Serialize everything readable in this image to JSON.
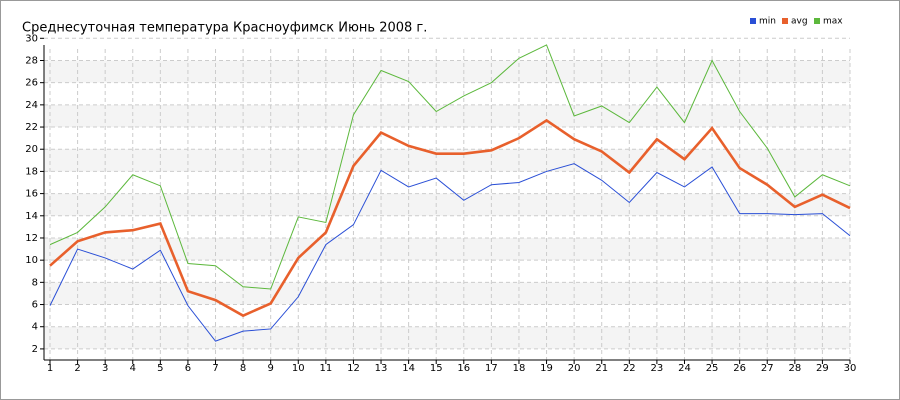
{
  "chart_data": {
    "type": "line",
    "title": "Среднесуточная температура Красноуфимск  Июнь 2008 г.",
    "x": [
      1,
      2,
      3,
      4,
      5,
      6,
      7,
      8,
      9,
      10,
      11,
      12,
      13,
      14,
      15,
      16,
      17,
      18,
      19,
      20,
      21,
      22,
      23,
      24,
      25,
      26,
      27,
      28,
      29,
      30
    ],
    "xlim": [
      1,
      30
    ],
    "xticks": [
      1,
      2,
      3,
      4,
      5,
      6,
      7,
      8,
      9,
      10,
      11,
      12,
      13,
      14,
      15,
      16,
      17,
      18,
      19,
      20,
      21,
      22,
      23,
      24,
      25,
      26,
      27,
      28,
      29,
      30
    ],
    "ylim": [
      1,
      30
    ],
    "yticks": [
      2,
      4,
      6,
      8,
      10,
      12,
      14,
      16,
      18,
      20,
      22,
      24,
      26,
      28,
      30
    ],
    "grid": true,
    "legend": "top-right",
    "series": [
      {
        "name": "min",
        "color": "#2a4fd6",
        "values": [
          5.9,
          11.0,
          10.2,
          9.2,
          10.9,
          5.9,
          2.7,
          3.6,
          3.8,
          6.7,
          11.4,
          13.2,
          18.1,
          16.6,
          17.4,
          15.4,
          16.8,
          17.0,
          18.0,
          18.7,
          17.2,
          15.2,
          17.9,
          16.6,
          18.4,
          14.2,
          14.2,
          14.1,
          14.2,
          12.2
        ]
      },
      {
        "name": "avg",
        "color": "#e8602c",
        "values": [
          9.5,
          11.7,
          12.5,
          12.7,
          13.3,
          7.2,
          6.4,
          5.0,
          6.1,
          10.2,
          12.5,
          18.5,
          21.5,
          20.3,
          19.6,
          19.6,
          19.9,
          21.0,
          22.6,
          20.9,
          19.8,
          17.9,
          20.9,
          19.1,
          21.9,
          18.3,
          16.8,
          14.8,
          15.9,
          14.7
        ]
      },
      {
        "name": "max",
        "color": "#5cb83c",
        "values": [
          11.4,
          12.5,
          14.8,
          17.7,
          16.7,
          9.7,
          9.5,
          7.6,
          7.4,
          13.9,
          13.4,
          23.1,
          27.1,
          26.1,
          23.4,
          24.8,
          26.0,
          28.2,
          29.4,
          23.0,
          23.9,
          22.4,
          25.6,
          22.4,
          28.0,
          23.4,
          20.1,
          15.7,
          17.7,
          16.7
        ]
      }
    ]
  }
}
